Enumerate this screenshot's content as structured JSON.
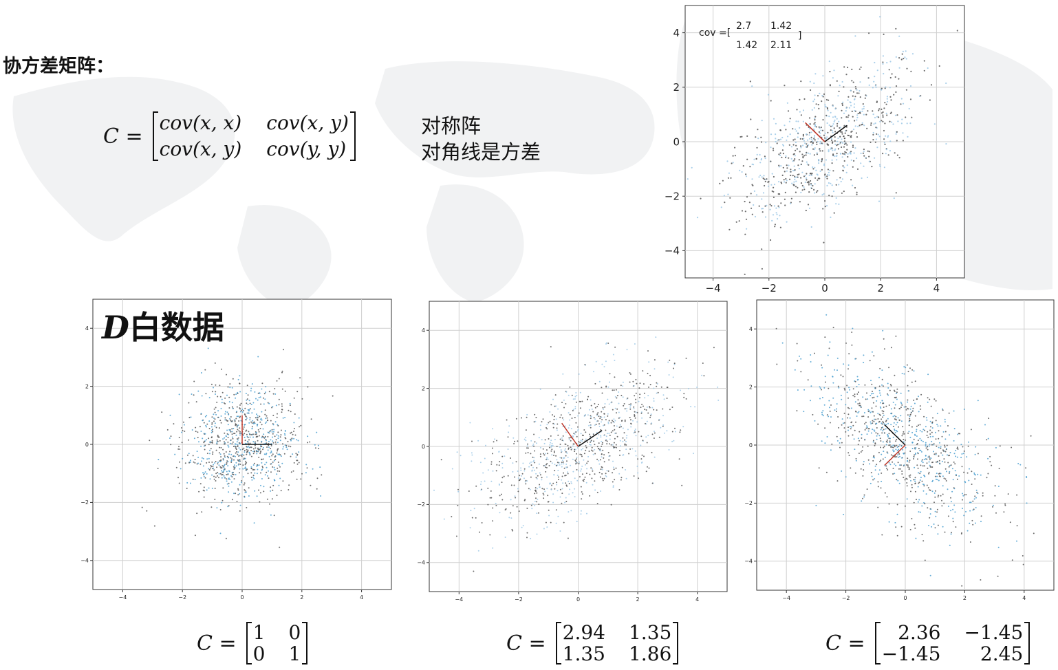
{
  "heading": "协方差矩阵：",
  "cov_formula": {
    "lhs": "C =",
    "cells": [
      "cov(x, x)",
      "cov(x, y)",
      "cov(x, y)",
      "cov(y, y)"
    ]
  },
  "notes": [
    "对称阵",
    "对角线是方差"
  ],
  "white_title": {
    "italic": "D",
    "text": "白数据"
  },
  "chart_data": [
    {
      "type": "scatter",
      "id": "top",
      "title": "",
      "xlabel": "",
      "ylabel": "",
      "xlim": [
        -5,
        5
      ],
      "ylim": [
        -5,
        5
      ],
      "xticks": [
        -4,
        -2,
        0,
        2,
        4
      ],
      "yticks": [
        -4,
        -2,
        0,
        2,
        4
      ],
      "grid": true,
      "annotation": {
        "prefix": "cov =[",
        "matrix": [
          [
            "2.7",
            "1.42"
          ],
          [
            "1.42",
            "2.11"
          ]
        ],
        "suffix": "]"
      },
      "cov": [
        [
          2.7,
          1.42
        ],
        [
          1.42,
          2.11
        ]
      ],
      "n_points": 900,
      "point_colors": [
        "#555555",
        "#9cc8e6"
      ],
      "axes_lines": [
        {
          "color": "#c0392b",
          "from": [
            0,
            0
          ],
          "to": [
            -0.7,
            0.7
          ]
        },
        {
          "color": "#111111",
          "from": [
            0,
            0
          ],
          "to": [
            0.8,
            0.6
          ]
        }
      ]
    },
    {
      "type": "scatter",
      "id": "white",
      "title": "",
      "xlabel": "",
      "ylabel": "",
      "xlim": [
        -5,
        5
      ],
      "ylim": [
        -5,
        5
      ],
      "xticks": [
        -4,
        -2,
        0,
        2,
        4
      ],
      "yticks": [
        -4,
        -2,
        0,
        2,
        4
      ],
      "grid": true,
      "cov": [
        [
          1,
          0
        ],
        [
          0,
          1
        ]
      ],
      "n_points": 1000,
      "point_colors": [
        "#555555",
        "#4a9fd0"
      ],
      "axes_lines": [
        {
          "color": "#c0392b",
          "from": [
            0,
            0
          ],
          "to": [
            0,
            1
          ]
        },
        {
          "color": "#111111",
          "from": [
            0,
            0
          ],
          "to": [
            1,
            0
          ]
        }
      ],
      "matrix_label": {
        "lhs": "C =",
        "cells": [
          "1",
          "0",
          "0",
          "1"
        ]
      }
    },
    {
      "type": "scatter",
      "id": "pos",
      "title": "",
      "xlabel": "",
      "ylabel": "",
      "xlim": [
        -5,
        5
      ],
      "ylim": [
        -5,
        5
      ],
      "xticks": [
        -4,
        -2,
        0,
        2,
        4
      ],
      "yticks": [
        -4,
        -2,
        0,
        2,
        4
      ],
      "grid": true,
      "cov": [
        [
          2.94,
          1.35
        ],
        [
          1.35,
          1.86
        ]
      ],
      "n_points": 1000,
      "point_colors": [
        "#555555",
        "#9cc8e6"
      ],
      "axes_lines": [
        {
          "color": "#c0392b",
          "from": [
            0,
            0
          ],
          "to": [
            -0.55,
            0.8
          ]
        },
        {
          "color": "#111111",
          "from": [
            0,
            0
          ],
          "to": [
            0.8,
            0.55
          ]
        }
      ],
      "matrix_label": {
        "lhs": "C =",
        "cells": [
          "2.94",
          "1.35",
          "1.35",
          "1.86"
        ]
      }
    },
    {
      "type": "scatter",
      "id": "neg",
      "title": "",
      "xlabel": "",
      "ylabel": "",
      "xlim": [
        -5,
        5
      ],
      "ylim": [
        -5,
        5
      ],
      "xticks": [
        -4,
        -2,
        0,
        2,
        4
      ],
      "yticks": [
        -4,
        -2,
        0,
        2,
        4
      ],
      "grid": true,
      "cov": [
        [
          2.36,
          -1.45
        ],
        [
          -1.45,
          2.45
        ]
      ],
      "n_points": 1000,
      "point_colors": [
        "#555555",
        "#4a9fd0"
      ],
      "axes_lines": [
        {
          "color": "#c0392b",
          "from": [
            0,
            0
          ],
          "to": [
            -0.7,
            -0.7
          ]
        },
        {
          "color": "#111111",
          "from": [
            0,
            0
          ],
          "to": [
            -0.7,
            0.7
          ]
        }
      ],
      "matrix_label": {
        "lhs": "C =",
        "cells": [
          "2.36",
          "−1.45",
          "−1.45",
          "2.45"
        ]
      }
    }
  ]
}
